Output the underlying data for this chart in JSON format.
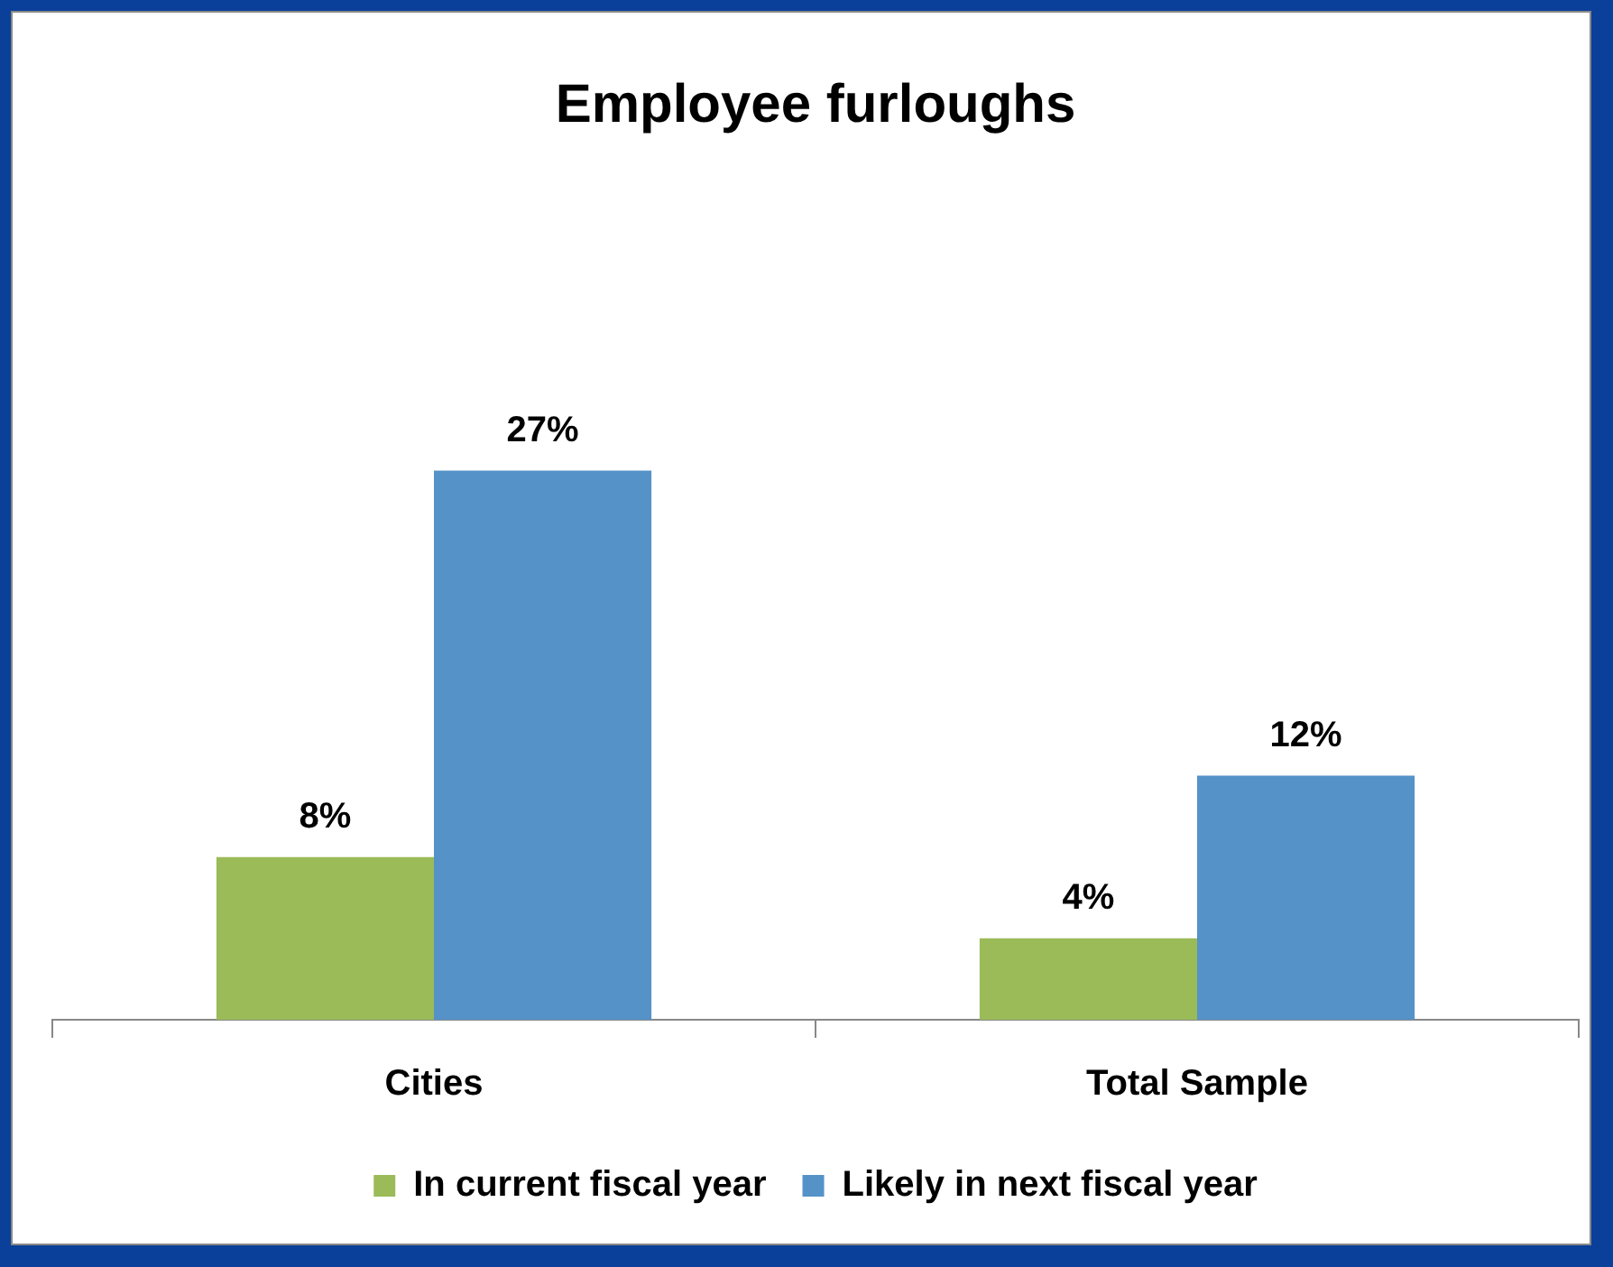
{
  "chart_data": {
    "type": "bar",
    "title": "Employee furloughs",
    "categories": [
      "Cities",
      "Total Sample"
    ],
    "series": [
      {
        "name": "In current fiscal year",
        "color": "#9bbb59",
        "values": [
          8,
          4
        ],
        "value_labels": [
          "8%",
          "4%"
        ]
      },
      {
        "name": "Likely in next fiscal year",
        "color": "#5592c8",
        "values": [
          27,
          12
        ],
        "value_labels": [
          "27%",
          "12%"
        ]
      }
    ],
    "legend": "bottom",
    "grid": false
  }
}
